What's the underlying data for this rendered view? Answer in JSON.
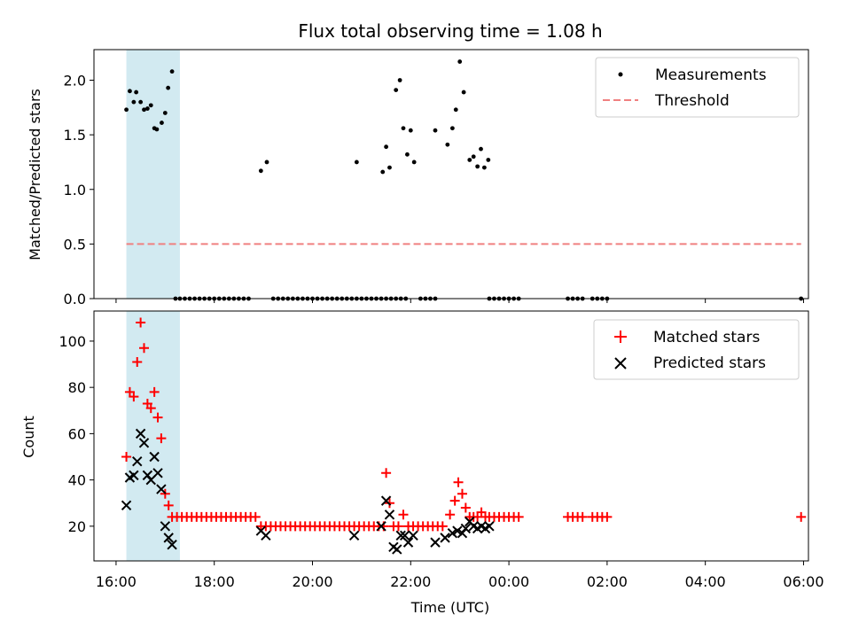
{
  "colors": {
    "shade": "#add8e6",
    "threshold": "#f08080",
    "matched": "#ff0000",
    "predicted": "#000000",
    "measurements": "#000000"
  },
  "chart_data": [
    {
      "type": "scatter",
      "title": "Flux total observing time = 1.08 h",
      "xlabel": "",
      "ylabel": "Matched/Predicted stars",
      "x_units": "hours since 16:00 UTC",
      "xlim": [
        -0.45,
        14.1
      ],
      "ylim": [
        0,
        2.28
      ],
      "yticks": [
        0.0,
        0.5,
        1.0,
        1.5,
        2.0
      ],
      "ytick_labels": [
        "0.0",
        "0.5",
        "1.0",
        "1.5",
        "2.0"
      ],
      "xticks": [
        0,
        2,
        4,
        6,
        8,
        10,
        12,
        14
      ],
      "shaded_region": [
        0.21,
        1.3
      ],
      "legend": {
        "placement": "top-right",
        "entries": [
          "Measurements",
          "Threshold"
        ]
      },
      "threshold": {
        "name": "Threshold",
        "x": [
          0.21,
          13.95
        ],
        "y": [
          0.5,
          0.5
        ]
      },
      "measurements": {
        "name": "Measurements",
        "points": [
          [
            0.21,
            1.73
          ],
          [
            0.28,
            1.9
          ],
          [
            0.36,
            1.8
          ],
          [
            0.41,
            1.89
          ],
          [
            0.5,
            1.8
          ],
          [
            0.57,
            1.73
          ],
          [
            0.64,
            1.74
          ],
          [
            0.71,
            1.77
          ],
          [
            0.78,
            1.56
          ],
          [
            0.83,
            1.55
          ],
          [
            0.93,
            1.61
          ],
          [
            1.0,
            1.7
          ],
          [
            1.06,
            1.93
          ],
          [
            1.14,
            2.08
          ],
          [
            1.21,
            0
          ],
          [
            1.3,
            0
          ],
          [
            1.4,
            0
          ],
          [
            1.5,
            0
          ],
          [
            1.6,
            0
          ],
          [
            1.7,
            0
          ],
          [
            1.8,
            0
          ],
          [
            1.9,
            0
          ],
          [
            2.0,
            0
          ],
          [
            2.1,
            0
          ],
          [
            2.2,
            0
          ],
          [
            2.3,
            0
          ],
          [
            2.4,
            0
          ],
          [
            2.5,
            0
          ],
          [
            2.6,
            0
          ],
          [
            2.7,
            0
          ],
          [
            2.95,
            1.17
          ],
          [
            3.07,
            1.25
          ],
          [
            3.2,
            0
          ],
          [
            3.3,
            0
          ],
          [
            3.4,
            0
          ],
          [
            3.5,
            0
          ],
          [
            3.6,
            0
          ],
          [
            3.7,
            0
          ],
          [
            3.8,
            0
          ],
          [
            3.9,
            0
          ],
          [
            4.0,
            0
          ],
          [
            4.1,
            0
          ],
          [
            4.2,
            0
          ],
          [
            4.3,
            0
          ],
          [
            4.4,
            0
          ],
          [
            4.5,
            0
          ],
          [
            4.6,
            0
          ],
          [
            4.7,
            0
          ],
          [
            4.8,
            0
          ],
          [
            4.9,
            0
          ],
          [
            5.0,
            0
          ],
          [
            5.1,
            0
          ],
          [
            5.2,
            0
          ],
          [
            5.3,
            0
          ],
          [
            5.4,
            0
          ],
          [
            5.5,
            0
          ],
          [
            5.6,
            0
          ],
          [
            5.7,
            0
          ],
          [
            5.8,
            0
          ],
          [
            5.9,
            0
          ],
          [
            4.9,
            1.25
          ],
          [
            5.43,
            1.16
          ],
          [
            5.5,
            1.39
          ],
          [
            5.57,
            1.2
          ],
          [
            5.7,
            1.91
          ],
          [
            5.78,
            2.0
          ],
          [
            5.85,
            1.56
          ],
          [
            5.93,
            1.32
          ],
          [
            6.0,
            1.54
          ],
          [
            6.07,
            1.25
          ],
          [
            6.2,
            0
          ],
          [
            6.3,
            0
          ],
          [
            6.4,
            0
          ],
          [
            6.5,
            0
          ],
          [
            6.5,
            1.54
          ],
          [
            6.75,
            1.41
          ],
          [
            6.85,
            1.56
          ],
          [
            6.92,
            1.73
          ],
          [
            7.0,
            2.17
          ],
          [
            7.08,
            1.89
          ],
          [
            7.2,
            1.27
          ],
          [
            7.28,
            1.3
          ],
          [
            7.36,
            1.21
          ],
          [
            7.43,
            1.37
          ],
          [
            7.5,
            1.2
          ],
          [
            7.58,
            1.27
          ],
          [
            7.6,
            0
          ],
          [
            7.7,
            0
          ],
          [
            7.8,
            0
          ],
          [
            7.9,
            0
          ],
          [
            8.0,
            0
          ],
          [
            8.1,
            0
          ],
          [
            8.2,
            0
          ],
          [
            9.2,
            0
          ],
          [
            9.3,
            0
          ],
          [
            9.4,
            0
          ],
          [
            9.5,
            0
          ],
          [
            9.7,
            0
          ],
          [
            9.8,
            0
          ],
          [
            9.9,
            0
          ],
          [
            10.0,
            0
          ],
          [
            13.95,
            0
          ]
        ]
      }
    },
    {
      "type": "scatter",
      "title": "",
      "xlabel": "Time (UTC)",
      "ylabel": "Count",
      "x_units": "hours since 16:00 UTC",
      "xlim": [
        -0.45,
        14.1
      ],
      "ylim": [
        5,
        113
      ],
      "yticks": [
        20,
        40,
        60,
        80,
        100
      ],
      "ytick_labels": [
        "20",
        "40",
        "60",
        "80",
        "100"
      ],
      "xticks": [
        0,
        2,
        4,
        6,
        8,
        10,
        12,
        14
      ],
      "xtick_labels": [
        "16:00",
        "18:00",
        "20:00",
        "22:00",
        "00:00",
        "02:00",
        "04:00",
        "06:00"
      ],
      "shaded_region": [
        0.21,
        1.3
      ],
      "legend": {
        "placement": "top-right",
        "entries": [
          "Matched stars",
          "Predicted stars"
        ]
      },
      "series": [
        {
          "name": "Matched stars",
          "marker": "plus",
          "points": [
            [
              0.21,
              50
            ],
            [
              0.28,
              78
            ],
            [
              0.36,
              76
            ],
            [
              0.43,
              91
            ],
            [
              0.5,
              108
            ],
            [
              0.57,
              97
            ],
            [
              0.64,
              73
            ],
            [
              0.71,
              71
            ],
            [
              0.78,
              78
            ],
            [
              0.85,
              67
            ],
            [
              0.92,
              58
            ],
            [
              1.0,
              34
            ],
            [
              1.07,
              29
            ],
            [
              1.14,
              24
            ],
            [
              1.24,
              24
            ],
            [
              1.34,
              24
            ],
            [
              1.44,
              24
            ],
            [
              1.54,
              24
            ],
            [
              1.64,
              24
            ],
            [
              1.74,
              24
            ],
            [
              1.84,
              24
            ],
            [
              1.94,
              24
            ],
            [
              2.04,
              24
            ],
            [
              2.14,
              24
            ],
            [
              2.24,
              24
            ],
            [
              2.34,
              24
            ],
            [
              2.44,
              24
            ],
            [
              2.54,
              24
            ],
            [
              2.64,
              24
            ],
            [
              2.74,
              24
            ],
            [
              2.84,
              24
            ],
            [
              2.95,
              20
            ],
            [
              3.05,
              20
            ],
            [
              3.15,
              20
            ],
            [
              3.25,
              20
            ],
            [
              3.35,
              20
            ],
            [
              3.45,
              20
            ],
            [
              3.55,
              20
            ],
            [
              3.65,
              20
            ],
            [
              3.75,
              20
            ],
            [
              3.85,
              20
            ],
            [
              3.95,
              20
            ],
            [
              4.05,
              20
            ],
            [
              4.15,
              20
            ],
            [
              4.25,
              20
            ],
            [
              4.35,
              20
            ],
            [
              4.45,
              20
            ],
            [
              4.55,
              20
            ],
            [
              4.65,
              20
            ],
            [
              4.75,
              20
            ],
            [
              4.85,
              20
            ],
            [
              4.95,
              20
            ],
            [
              5.05,
              20
            ],
            [
              5.15,
              20
            ],
            [
              5.25,
              20
            ],
            [
              5.35,
              20
            ],
            [
              5.45,
              20
            ],
            [
              5.5,
              43
            ],
            [
              5.57,
              30
            ],
            [
              5.65,
              20
            ],
            [
              5.75,
              20
            ],
            [
              5.85,
              25
            ],
            [
              5.95,
              20
            ],
            [
              6.05,
              20
            ],
            [
              6.15,
              20
            ],
            [
              6.25,
              20
            ],
            [
              6.35,
              20
            ],
            [
              6.45,
              20
            ],
            [
              6.55,
              20
            ],
            [
              6.65,
              20
            ],
            [
              6.8,
              25
            ],
            [
              6.9,
              31
            ],
            [
              6.97,
              39
            ],
            [
              7.05,
              34
            ],
            [
              7.12,
              28
            ],
            [
              7.2,
              24
            ],
            [
              7.28,
              24
            ],
            [
              7.36,
              24
            ],
            [
              7.44,
              26
            ],
            [
              7.52,
              24
            ],
            [
              7.6,
              24
            ],
            [
              7.7,
              24
            ],
            [
              7.8,
              24
            ],
            [
              7.9,
              24
            ],
            [
              8.0,
              24
            ],
            [
              8.1,
              24
            ],
            [
              8.2,
              24
            ],
            [
              9.2,
              24
            ],
            [
              9.3,
              24
            ],
            [
              9.4,
              24
            ],
            [
              9.5,
              24
            ],
            [
              9.7,
              24
            ],
            [
              9.8,
              24
            ],
            [
              9.9,
              24
            ],
            [
              10.0,
              24
            ],
            [
              13.95,
              24
            ]
          ]
        },
        {
          "name": "Predicted stars",
          "marker": "x",
          "points": [
            [
              0.21,
              29
            ],
            [
              0.28,
              41
            ],
            [
              0.36,
              42
            ],
            [
              0.43,
              48
            ],
            [
              0.5,
              60
            ],
            [
              0.57,
              56
            ],
            [
              0.64,
              42
            ],
            [
              0.71,
              40
            ],
            [
              0.78,
              50
            ],
            [
              0.85,
              43
            ],
            [
              0.92,
              36
            ],
            [
              1.0,
              20
            ],
            [
              1.07,
              15
            ],
            [
              1.14,
              12
            ],
            [
              2.95,
              18
            ],
            [
              3.05,
              16
            ],
            [
              4.85,
              16
            ],
            [
              5.4,
              20
            ],
            [
              5.5,
              31
            ],
            [
              5.57,
              25
            ],
            [
              5.65,
              11
            ],
            [
              5.72,
              10
            ],
            [
              5.8,
              16
            ],
            [
              5.88,
              16
            ],
            [
              5.95,
              13
            ],
            [
              6.05,
              16
            ],
            [
              6.5,
              13
            ],
            [
              6.7,
              15
            ],
            [
              6.85,
              17
            ],
            [
              6.95,
              18
            ],
            [
              7.05,
              17
            ],
            [
              7.12,
              19
            ],
            [
              7.2,
              22
            ],
            [
              7.28,
              20
            ],
            [
              7.36,
              19
            ],
            [
              7.44,
              20
            ],
            [
              7.52,
              19
            ],
            [
              7.6,
              20
            ]
          ]
        }
      ]
    }
  ]
}
